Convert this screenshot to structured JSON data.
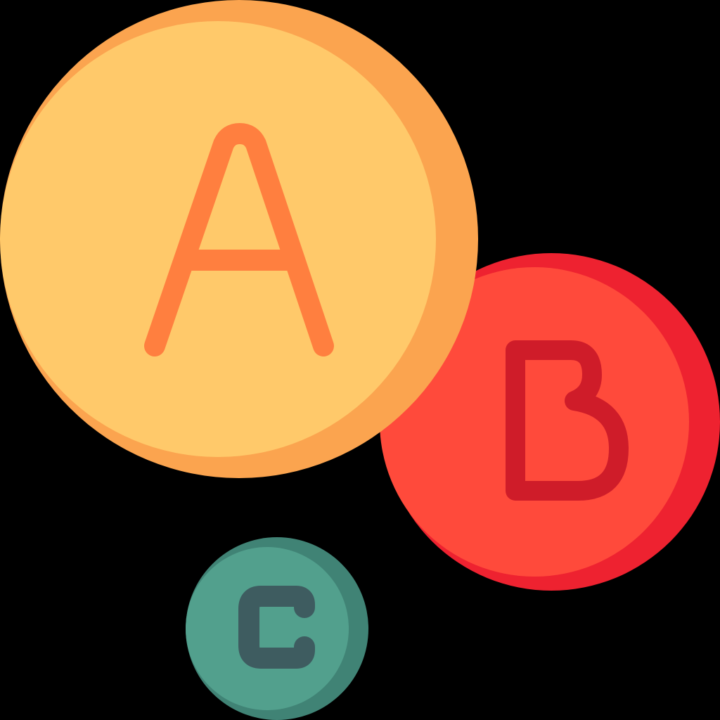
{
  "colors": {
    "background": "#000000",
    "bubble_a": {
      "face": "#FFC96A",
      "rim": "#FBA44F",
      "letter": "#FF7F3F"
    },
    "bubble_b": {
      "face": "#FF4A3B",
      "rim": "#EE2230",
      "letter": "#CF1C29"
    },
    "bubble_c": {
      "face": "#52A08D",
      "rim": "#408375",
      "letter": "#3E5C60"
    }
  },
  "bubbles": [
    {
      "letter": "A",
      "icon": "letter-a-bubble-icon"
    },
    {
      "letter": "B",
      "icon": "letter-b-bubble-icon"
    },
    {
      "letter": "C",
      "icon": "letter-c-bubble-icon"
    }
  ]
}
